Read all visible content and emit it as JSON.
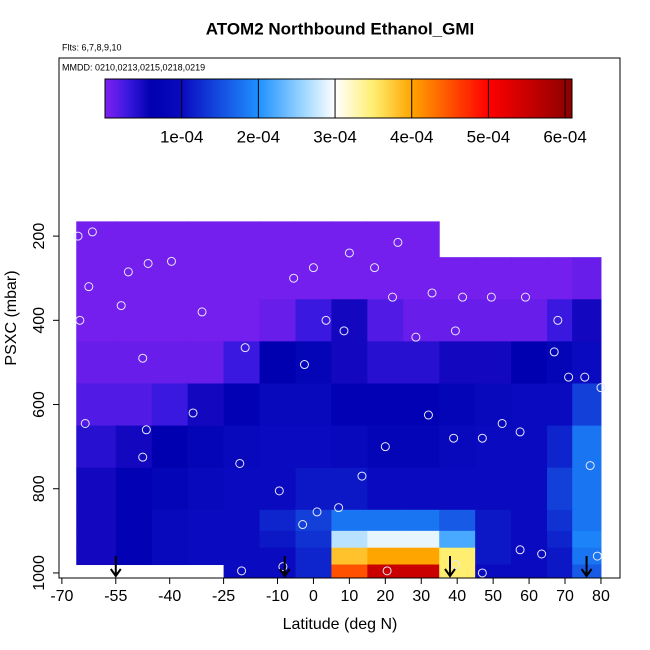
{
  "chart_data": {
    "type": "heatmap",
    "title": "ATOM2 Northbound Ethanol_GMI",
    "subtitle": "Flts: 6,7,8,9,10",
    "annotation": "MMDD: 0210,0213,0215,0218,0219",
    "x_label": "Latitude (deg N)",
    "y_label": "PSXC (mbar)",
    "xlim": [
      -70.8,
      85.3
    ],
    "xticks": [
      -70,
      -55,
      -40,
      -25,
      -10,
      0,
      10,
      20,
      30,
      40,
      50,
      60,
      70,
      80
    ],
    "ylim": [
      1012,
      -223
    ],
    "yticks": [
      200,
      400,
      600,
      800,
      1000
    ],
    "x_edges": [
      -66,
      -55,
      -45,
      -35,
      -25,
      -15,
      -5,
      5,
      15,
      25,
      35,
      45,
      55,
      65,
      72,
      80
    ],
    "y_edges": [
      165,
      250,
      350,
      450,
      550,
      650,
      750,
      850,
      900,
      940,
      980,
      1012
    ],
    "values": [
      [
        5e-06,
        5e-06,
        5e-06,
        5e-06,
        5e-06,
        5e-06,
        5e-06,
        5e-06,
        5e-06,
        5e-06,
        null,
        null,
        null,
        null,
        null
      ],
      [
        5e-06,
        5e-06,
        5e-06,
        5e-06,
        5e-06,
        5e-06,
        5e-06,
        5e-06,
        5e-06,
        5e-06,
        5e-06,
        5e-06,
        5e-06,
        5e-06,
        1e-05
      ],
      [
        5e-06,
        5e-06,
        5e-06,
        5e-06,
        5e-06,
        1e-05,
        3e-05,
        5e-05,
        2e-05,
        1e-05,
        1e-05,
        1e-05,
        1e-05,
        3e-05,
        5e-05
      ],
      [
        1e-05,
        1e-05,
        1e-05,
        1e-05,
        3e-05,
        6e-05,
        8e-05,
        5e-05,
        4e-05,
        4e-05,
        5e-05,
        5e-05,
        6e-05,
        8e-05,
        0.0001
      ],
      [
        2e-05,
        2e-05,
        3e-05,
        5e-05,
        7e-05,
        9e-05,
        9e-05,
        7e-05,
        7e-05,
        7e-05,
        8e-05,
        9e-05,
        0.0001,
        0.0001,
        0.00014
      ],
      [
        4e-05,
        5e-05,
        6e-05,
        8e-05,
        9e-05,
        0.0001,
        0.0001,
        9e-05,
        8e-05,
        8e-05,
        9e-05,
        0.0001,
        0.0001,
        0.00012,
        0.00018
      ],
      [
        5e-05,
        7e-05,
        8e-05,
        9e-05,
        0.0001,
        0.0001,
        0.00011,
        0.00011,
        0.0001,
        0.0001,
        0.0001,
        0.0001,
        0.0001,
        0.00014,
        0.00018
      ],
      [
        5e-05,
        7e-05,
        9e-05,
        0.0001,
        0.0001,
        0.00012,
        0.00014,
        0.00018,
        0.00018,
        0.00018,
        0.00016,
        0.00011,
        0.0001,
        0.00013,
        0.00018
      ],
      [
        5e-05,
        7e-05,
        9e-05,
        0.0001,
        0.0001,
        0.00011,
        0.00013,
        0.00027,
        0.00029,
        0.00029,
        0.00022,
        0.00011,
        0.0001,
        0.00012,
        0.00019
      ],
      [
        5e-05,
        7e-05,
        9e-05,
        0.0001,
        0.0001,
        0.0001,
        0.00012,
        0.00038,
        0.0004,
        0.0004,
        0.00035,
        0.00011,
        0.0001,
        0.00011,
        0.00018
      ],
      [
        null,
        null,
        null,
        null,
        0.0001,
        0.0001,
        0.00012,
        0.00045,
        0.00055,
        0.00055,
        0.00035,
        0.0001,
        0.0001,
        0.00011,
        0.00016
      ]
    ],
    "colorscale": [
      {
        "value": 0,
        "color": "#8020f0"
      },
      {
        "value": 3e-05,
        "color": "#3a18e0"
      },
      {
        "value": 6e-05,
        "color": "#0000b0"
      },
      {
        "value": 0.0001,
        "color": "#0a0ac0"
      },
      {
        "value": 0.0002,
        "color": "#1e90ff"
      },
      {
        "value": 0.00026,
        "color": "#a0d8ff"
      },
      {
        "value": 0.0003,
        "color": "#ffffff"
      },
      {
        "value": 0.00035,
        "color": "#ffee70"
      },
      {
        "value": 0.0004,
        "color": "#ffa500"
      },
      {
        "value": 0.00046,
        "color": "#ff4000"
      },
      {
        "value": 0.0005,
        "color": "#ff0000"
      },
      {
        "value": 0.000609,
        "color": "#8b0000"
      }
    ],
    "colorbar": {
      "lim": [
        0,
        0.000609
      ],
      "ticks": [
        {
          "value": 0.0001,
          "label": "1e-04"
        },
        {
          "value": 0.0002,
          "label": "2e-04"
        },
        {
          "value": 0.0003,
          "label": "3e-04"
        },
        {
          "value": 0.0004,
          "label": "4e-04"
        },
        {
          "value": 0.0005,
          "label": "5e-04"
        },
        {
          "value": 0.0006,
          "label": "6e-04"
        }
      ]
    },
    "points": {
      "color": "#e8e8ff",
      "x": [
        -65.5,
        -61.5,
        -62.5,
        -51.5,
        -46,
        -39.5,
        -53.5,
        -65,
        -47.5,
        -63.5,
        -46.5,
        -47.5,
        -20.5,
        -31,
        -19,
        -33.5,
        -5.5,
        -2.5,
        0,
        3.5,
        8.5,
        10,
        17,
        22,
        23.5,
        33,
        28.5,
        39.5,
        41.5,
        49.5,
        59,
        68,
        67,
        71,
        75.5,
        80,
        77,
        57.5,
        63.5,
        39.5,
        47,
        20.5,
        -20,
        -8.5,
        79,
        -3,
        1,
        7,
        -9.5,
        13.5,
        20,
        32,
        39,
        47,
        52.5,
        57.5
      ],
      "y": [
        200,
        190,
        320,
        285,
        265,
        260,
        365,
        400,
        490,
        645,
        660,
        725,
        740,
        380,
        465,
        620,
        300,
        505,
        275,
        400,
        425,
        240,
        275,
        345,
        215,
        335,
        440,
        425,
        345,
        345,
        345,
        400,
        475,
        535,
        535,
        560,
        745,
        945,
        955,
        980,
        1000,
        995,
        995,
        985,
        960,
        885,
        855,
        845,
        805,
        770,
        700,
        625,
        680,
        680,
        645,
        665
      ]
    },
    "arrows_x": [
      -55,
      -8,
      38,
      76
    ]
  }
}
